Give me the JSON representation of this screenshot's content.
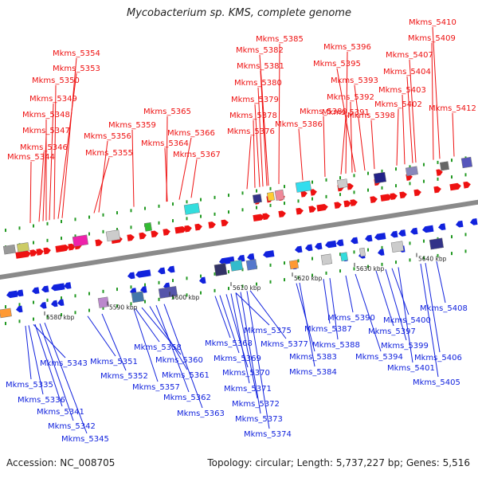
{
  "title": "Mycobacterium sp. KMS, complete genome",
  "footer": {
    "accession": "Accession: NC_008705",
    "summary": "Topology: circular; Length: 5,737,227 bp; Genes: 5,516"
  },
  "colors": {
    "forward": "#ee1111",
    "reverse": "#1122dd",
    "axis": "#8a8a8a",
    "tick": "#229922"
  },
  "axis_labels": [
    "5580 kbp",
    "5590 kbp",
    "5600 kbp",
    "5610 kbp",
    "5620 kbp",
    "5630 kbp",
    "5640 kbp"
  ],
  "forward_genes": [
    "Mkms_5344",
    "Mkms_5346",
    "Mkms_5347",
    "Mkms_5348",
    "Mkms_5349",
    "Mkms_5350",
    "Mkms_5353",
    "Mkms_5354",
    "Mkms_5355",
    "Mkms_5356",
    "Mkms_5359",
    "Mkms_5364",
    "Mkms_5365",
    "Mkms_5366",
    "Mkms_5367",
    "Mkms_5376",
    "Mkms_5378",
    "Mkms_5379",
    "Mkms_5380",
    "Mkms_5381",
    "Mkms_5382",
    "Mkms_5385",
    "Mkms_5386",
    "Mkms_5389",
    "Mkms_5391",
    "Mkms_5392",
    "Mkms_5393",
    "Mkms_5395",
    "Mkms_5396",
    "Mkms_5398",
    "Mkms_5402",
    "Mkms_5403",
    "Mkms_5404",
    "Mkms_5407",
    "Mkms_5409",
    "Mkms_5410",
    "Mkms_5412"
  ],
  "reverse_genes": [
    "Mkms_5343",
    "Mkms_5335",
    "Mkms_5336",
    "Mkms_5341",
    "Mkms_5342",
    "Mkms_5345",
    "Mkms_5351",
    "Mkms_5352",
    "Mkms_5357",
    "Mkms_5358",
    "Mkms_5360",
    "Mkms_5361",
    "Mkms_5362",
    "Mkms_5363",
    "Mkms_5368",
    "Mkms_5369",
    "Mkms_5370",
    "Mkms_5371",
    "Mkms_5372",
    "Mkms_5373",
    "Mkms_5374",
    "Mkms_5375",
    "Mkms_5377",
    "Mkms_5383",
    "Mkms_5384",
    "Mkms_5387",
    "Mkms_5388",
    "Mkms_5390",
    "Mkms_5394",
    "Mkms_5397",
    "Mkms_5399",
    "Mkms_5400",
    "Mkms_5401",
    "Mkms_5405",
    "Mkms_5406",
    "Mkms_5408"
  ]
}
